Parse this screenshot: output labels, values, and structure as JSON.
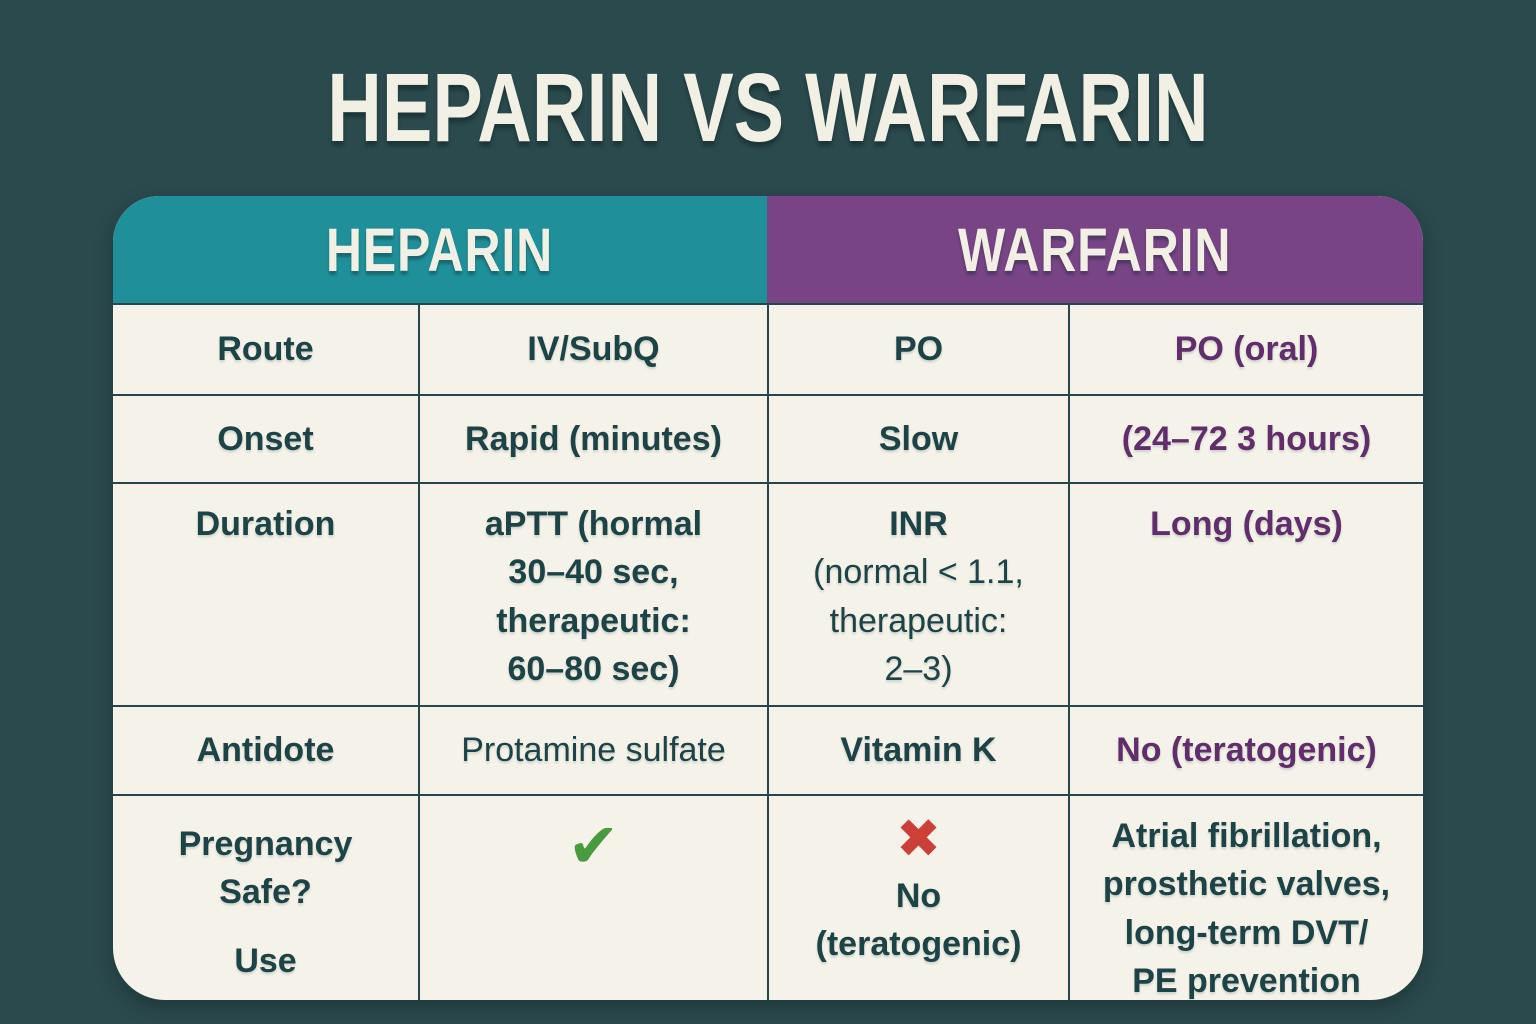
{
  "page": {
    "title": "HEPARIN VS WARFARIN"
  },
  "colors": {
    "page_background": "#2b4a4e",
    "heparin_header": "#1f9099",
    "warfarin_header": "#784486",
    "cell_background": "#f4f2e9",
    "dark_teal_text": "#1e4347",
    "purple_text": "#612d6b",
    "check_green": "#4a9a3f",
    "cross_red": "#cc4038",
    "grid_line": "#24484c",
    "title_text": "#f2efe4"
  },
  "header": {
    "heparin": "HEPARIN",
    "warfarin": "WARFARIN"
  },
  "rows": {
    "route": {
      "label": "Route",
      "heparin": "IV/SubQ",
      "warfarin_a": "PO",
      "warfarin_b": "PO (oral)"
    },
    "onset": {
      "label": "Onset",
      "heparin": "Rapid (minutes)",
      "warfarin_a": "Slow",
      "warfarin_b": "(24–72 3 hours)"
    },
    "duration": {
      "label": "Duration",
      "heparin": "aPTT (hormal\n30–40 sec,\ntherapeutic:\n60–80 sec)",
      "warfarin_a_title": "INR",
      "warfarin_a_detail": "(normal < 1.1,\ntherapeutic:\n2–3)",
      "warfarin_b": "Long (days)"
    },
    "antidote": {
      "label": "Antidote",
      "heparin": "Protamine sulfate",
      "warfarin_a": "Vitamin K",
      "warfarin_b": "No (teratogenic)"
    },
    "pregnancy_use": {
      "label_top": "Pregnancy\nSafe?",
      "label_bottom": "Use",
      "heparin_icon": "check-mark",
      "warfarin_a_icon": "cross-mark",
      "warfarin_a_text": "No\n(teratogenic)",
      "warfarin_b": "Atrial fibrillation,\nprosthetic valves,\nlong-term DVT/\nPE prevention"
    }
  },
  "icons": {
    "check_glyph": "✔",
    "cross_glyph": "✖"
  }
}
